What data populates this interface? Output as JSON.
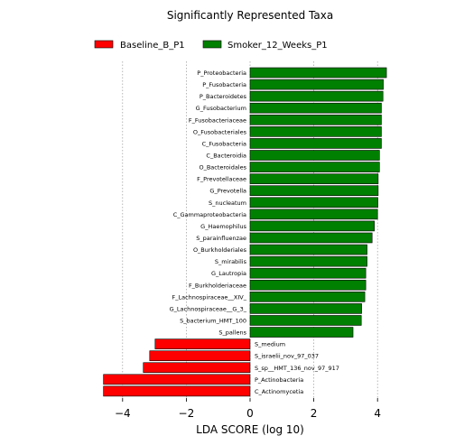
{
  "chart_data": {
    "type": "bar",
    "orientation": "horizontal",
    "title": "Significantly Represented Taxa",
    "xlabel": "LDA SCORE (log 10)",
    "ylabel": "",
    "xlim": [
      -4.7,
      4.5
    ],
    "xticks": [
      -4,
      -2,
      0,
      2,
      4
    ],
    "xtick_labels": [
      "−4",
      "−2",
      "0",
      "2",
      "4"
    ],
    "grid": "vertical dotted at x ticks",
    "legend": {
      "placement": "top",
      "entries": [
        {
          "name": "Baseline_B_P1",
          "color": "#ff0000"
        },
        {
          "name": "Smoker_12_Weeks_P1",
          "color": "#008000"
        }
      ]
    },
    "bars": [
      {
        "label": "P_Proteobacteria",
        "value": 4.28,
        "group": "Smoker_12_Weeks_P1"
      },
      {
        "label": "P_Fusobacteria",
        "value": 4.18,
        "group": "Smoker_12_Weeks_P1"
      },
      {
        "label": "P_Bacteroidetes",
        "value": 4.17,
        "group": "Smoker_12_Weeks_P1"
      },
      {
        "label": "G_Fusobacterium",
        "value": 4.12,
        "group": "Smoker_12_Weeks_P1"
      },
      {
        "label": "F_Fusobacteriaceae",
        "value": 4.12,
        "group": "Smoker_12_Weeks_P1"
      },
      {
        "label": "O_Fusobacteriales",
        "value": 4.12,
        "group": "Smoker_12_Weeks_P1"
      },
      {
        "label": "C_Fusobacteria",
        "value": 4.12,
        "group": "Smoker_12_Weeks_P1"
      },
      {
        "label": "C_Bacteroidia",
        "value": 4.06,
        "group": "Smoker_12_Weeks_P1"
      },
      {
        "label": "O_Bacteroidales",
        "value": 4.06,
        "group": "Smoker_12_Weeks_P1"
      },
      {
        "label": "F_Prevotellaceae",
        "value": 4.02,
        "group": "Smoker_12_Weeks_P1"
      },
      {
        "label": "G_Prevotella",
        "value": 4.02,
        "group": "Smoker_12_Weeks_P1"
      },
      {
        "label": "S_nucleatum",
        "value": 4.01,
        "group": "Smoker_12_Weeks_P1"
      },
      {
        "label": "C_Gammaproteobacteria",
        "value": 4.0,
        "group": "Smoker_12_Weeks_P1"
      },
      {
        "label": "G_Haemophilus",
        "value": 3.9,
        "group": "Smoker_12_Weeks_P1"
      },
      {
        "label": "S_parainfluenzae",
        "value": 3.83,
        "group": "Smoker_12_Weeks_P1"
      },
      {
        "label": "O_Burkholderiales",
        "value": 3.67,
        "group": "Smoker_12_Weeks_P1"
      },
      {
        "label": "S_mirabilis",
        "value": 3.67,
        "group": "Smoker_12_Weeks_P1"
      },
      {
        "label": "G_Lautropia",
        "value": 3.63,
        "group": "Smoker_12_Weeks_P1"
      },
      {
        "label": "F_Burkholderiaceae",
        "value": 3.63,
        "group": "Smoker_12_Weeks_P1"
      },
      {
        "label": "F_Lachnospiraceae__XIV_",
        "value": 3.6,
        "group": "Smoker_12_Weeks_P1"
      },
      {
        "label": "G_Lachnospiraceae__G_3_",
        "value": 3.5,
        "group": "Smoker_12_Weeks_P1"
      },
      {
        "label": "S_bacterium_HMT_100",
        "value": 3.49,
        "group": "Smoker_12_Weeks_P1"
      },
      {
        "label": "S_pallens",
        "value": 3.23,
        "group": "Smoker_12_Weeks_P1"
      },
      {
        "label": "S_medium",
        "value": -2.98,
        "group": "Baseline_B_P1"
      },
      {
        "label": "S_israelii_nov_97_037",
        "value": -3.15,
        "group": "Baseline_B_P1"
      },
      {
        "label": "S_sp__HMT_136_nov_97_917",
        "value": -3.35,
        "group": "Baseline_B_P1"
      },
      {
        "label": "P_Actinobacteria",
        "value": -4.6,
        "group": "Baseline_B_P1"
      },
      {
        "label": "C_Actinomycetia",
        "value": -4.6,
        "group": "Baseline_B_P1"
      }
    ]
  }
}
